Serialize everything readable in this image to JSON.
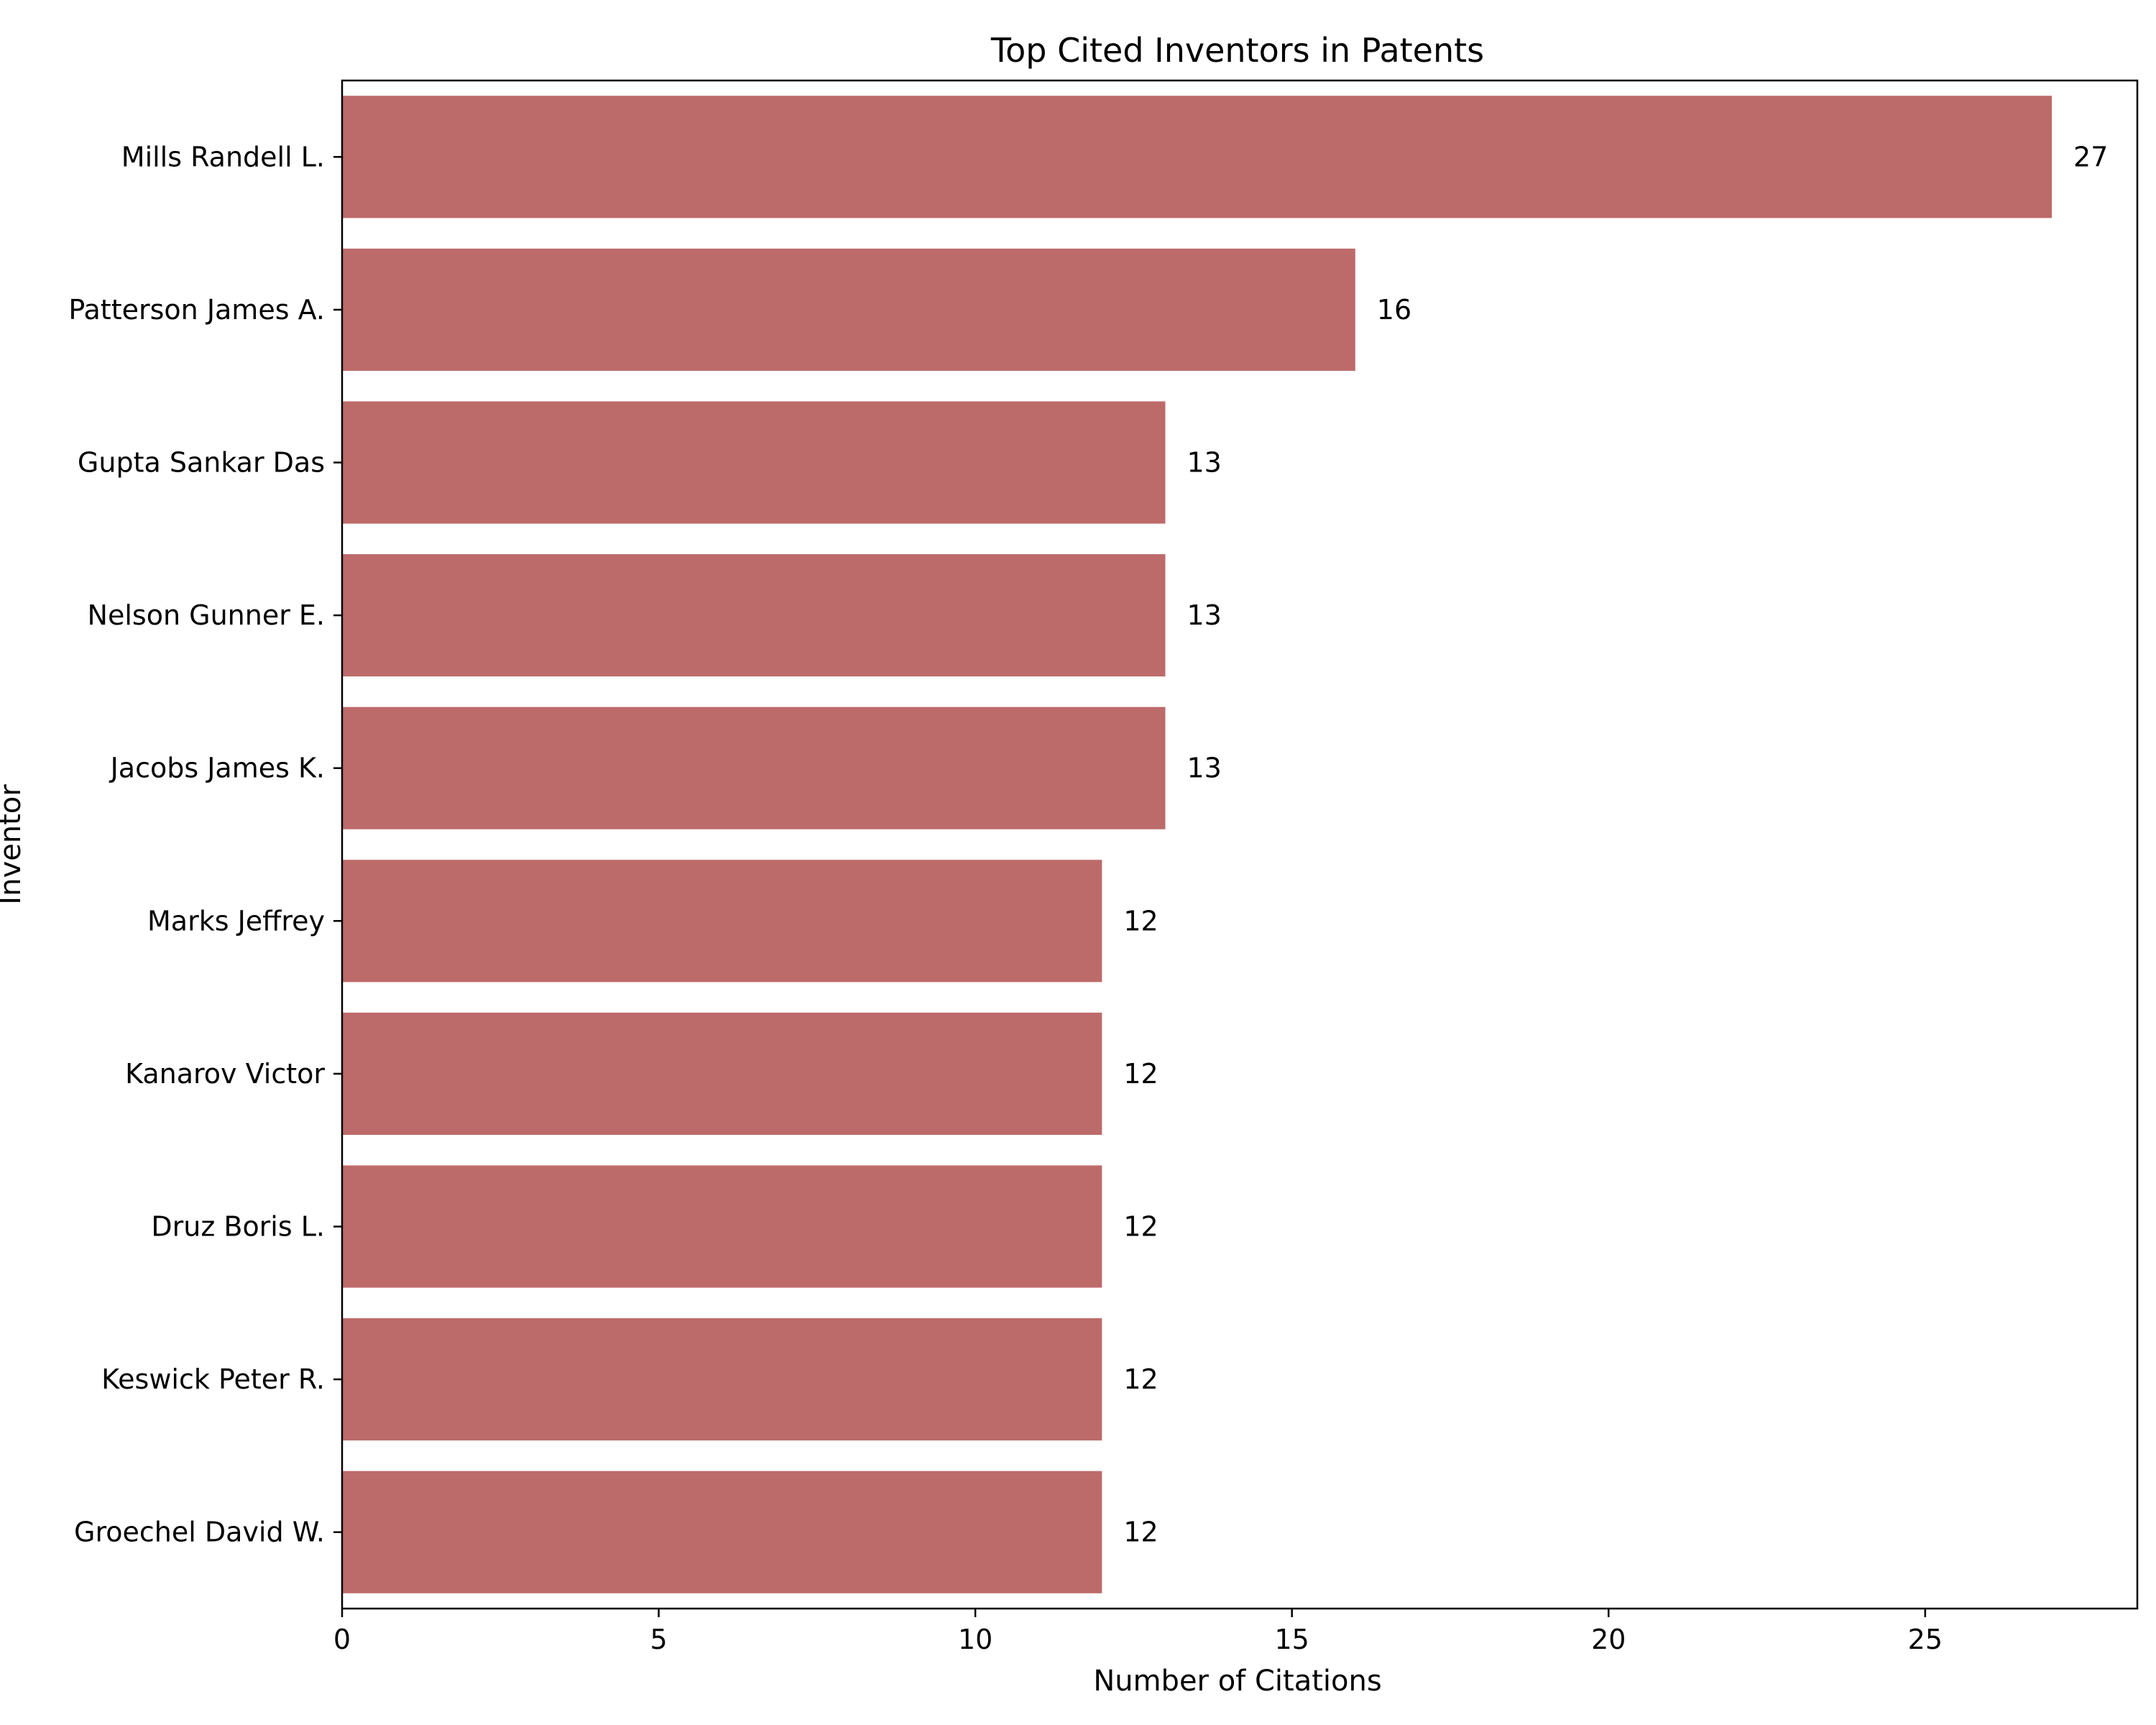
{
  "chart_data": {
    "type": "bar",
    "orientation": "horizontal",
    "title": "Top Cited Inventors in Patents",
    "xlabel": "Number of Citations",
    "ylabel": "Inventor",
    "categories": [
      "Mills Randell L.",
      "Patterson James A.",
      "Gupta Sankar Das",
      "Nelson Gunner E.",
      "Jacobs James K.",
      "Marks Jeffrey",
      "Kanarov Victor",
      "Druz Boris L.",
      "Keswick Peter R.",
      "Groechel David W."
    ],
    "values": [
      27,
      16,
      13,
      13,
      13,
      12,
      12,
      12,
      12,
      12
    ],
    "xticks": [
      0,
      5,
      10,
      15,
      20,
      25
    ],
    "xlim": [
      0,
      28.35
    ],
    "grid": false,
    "bar_color": "#bd6a6a",
    "data_labels": true
  }
}
